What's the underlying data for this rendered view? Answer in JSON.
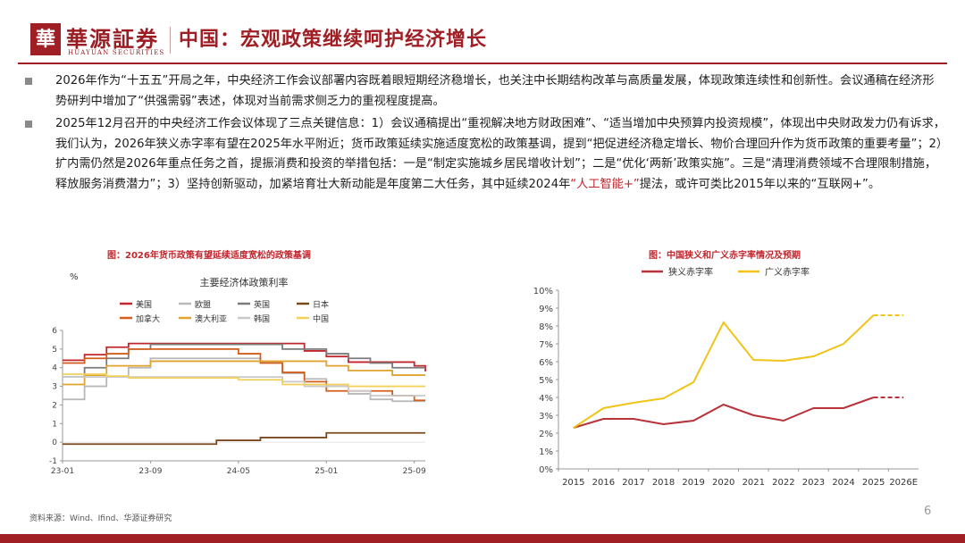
{
  "brand": {
    "logo_char": "華",
    "name_cn": "華源証券",
    "name_en": "HUAYUAN SECURITIES",
    "color": "#a01f25"
  },
  "page_title": "中国：宏观政策继续呵护经济增长",
  "paragraph1": "2026年作为“十五五”开局之年，中央经济工作会议部署内容既着眼短期经济稳增长，也关注中长期结构改革与高质量发展，体现政策连续性和创新性。会议通稿在经济形势研判中增加了“供强需弱”表述，体现对当前需求侧乏力的重视程度提高。",
  "paragraph2": {
    "before": "2025年12月召开的中央经济工作会议体现了三点关键信息：1）会议通稿提出“重视解决地方财政困难”、“适当增加中央预算内投资规模”，体现出中央财政发力仍有诉求，我们认为，2026年狭义赤字率有望在2025年水平附近；货币政策延续实施适度宽松的政策基调，提到“把促进经济稳定增长、物价合理回升作为货币政策的重要考量”；2）扩内需仍然是2026年重点任务之首，提振消费和投资的举措包括：一是“制定实施城乡居民增收计划”；二是“优化‘两新’政策实施”。三是“清理消费领域不合理限制措施，释放服务消费潜力”；3）坚持创新驱动，加紧培育壮大新动能是年度第二大任务，其中延续2024年",
    "highlight": "“人工智能+”",
    "after": "提法，或许可类比2015年以来的“互联网+”。"
  },
  "chart_left_caption": "图：2026年货币政策有望延续适度宽松的政策基调",
  "chart_right_caption": "图：中国狭义和广义赤字率情况及预期",
  "source": "资料来源：Wind、Ifind、华源证券研究",
  "page_number": "6",
  "chart_data": [
    {
      "type": "line",
      "title": "主要经济体政策利率",
      "ylabel": "%",
      "ylim": [
        -1,
        6
      ],
      "yticks": [
        "-1",
        "0",
        "1",
        "2",
        "3",
        "4",
        "5",
        "6"
      ],
      "xticks": [
        "23-01",
        "23-09",
        "24-05",
        "25-01",
        "25-09"
      ],
      "x": [
        0,
        2,
        4,
        6,
        8,
        10,
        12,
        14,
        16,
        18,
        20,
        22,
        24,
        26,
        28,
        30,
        32,
        33
      ],
      "series": [
        {
          "name": "美国",
          "color": "#c0262d",
          "values": [
            4.4,
            4.7,
            5.1,
            5.3,
            5.3,
            5.3,
            5.3,
            5.3,
            5.3,
            5.3,
            5.3,
            4.9,
            4.6,
            4.3,
            4.3,
            4.3,
            4.1,
            3.8
          ]
        },
        {
          "name": "欧盟",
          "color": "#b8b8b8",
          "values": [
            2.3,
            3.0,
            3.5,
            4.0,
            4.5,
            4.5,
            4.5,
            4.5,
            4.5,
            4.3,
            3.7,
            3.4,
            3.0,
            2.6,
            2.3,
            2.2,
            2.2,
            2.2
          ]
        },
        {
          "name": "英国",
          "color": "#7c7c7c",
          "values": [
            3.5,
            4.0,
            4.5,
            5.0,
            5.25,
            5.25,
            5.25,
            5.25,
            5.25,
            5.25,
            5.0,
            5.0,
            4.75,
            4.5,
            4.25,
            4.0,
            4.0,
            4.0
          ]
        },
        {
          "name": "日本",
          "color": "#7a4a1e",
          "values": [
            -0.1,
            -0.1,
            -0.1,
            -0.1,
            -0.1,
            -0.1,
            -0.1,
            0.1,
            0.1,
            0.25,
            0.25,
            0.25,
            0.5,
            0.5,
            0.5,
            0.5,
            0.5,
            0.5
          ]
        },
        {
          "name": "加拿大",
          "color": "#d45f1c",
          "values": [
            4.25,
            4.5,
            4.75,
            5.0,
            5.0,
            5.0,
            5.0,
            5.0,
            4.75,
            4.25,
            3.75,
            3.25,
            2.75,
            2.75,
            2.75,
            2.5,
            2.25,
            2.25
          ]
        },
        {
          "name": "澳大利亚",
          "color": "#e0a32e",
          "values": [
            3.1,
            3.6,
            4.1,
            4.1,
            4.35,
            4.35,
            4.35,
            4.35,
            4.35,
            4.35,
            4.35,
            4.35,
            4.1,
            3.85,
            3.85,
            3.6,
            3.6,
            3.6
          ]
        },
        {
          "name": "韩国",
          "color": "#c9c9c9",
          "values": [
            3.5,
            3.5,
            3.5,
            3.5,
            3.5,
            3.5,
            3.5,
            3.5,
            3.5,
            3.5,
            3.25,
            3.0,
            3.0,
            2.75,
            2.5,
            2.5,
            2.5,
            2.5
          ]
        },
        {
          "name": "中国",
          "color": "#f2d15b",
          "values": [
            3.65,
            3.65,
            3.55,
            3.45,
            3.45,
            3.45,
            3.45,
            3.45,
            3.35,
            3.35,
            3.1,
            3.1,
            3.1,
            3.0,
            3.0,
            3.0,
            3.0,
            3.0
          ]
        }
      ]
    },
    {
      "type": "line",
      "title": "",
      "ylim": [
        0,
        10
      ],
      "yticks": [
        "0%",
        "1%",
        "2%",
        "3%",
        "4%",
        "5%",
        "6%",
        "7%",
        "8%",
        "9%",
        "10%"
      ],
      "categories": [
        "2015",
        "2016",
        "2017",
        "2018",
        "2019",
        "2020",
        "2021",
        "2022",
        "2023",
        "2024",
        "2025",
        "2026E"
      ],
      "series": [
        {
          "name": "狭义赤字率",
          "color": "#b8323a",
          "values": [
            2.3,
            2.8,
            2.8,
            2.5,
            2.7,
            3.6,
            3.0,
            2.7,
            3.4,
            3.4,
            4.0,
            4.0
          ],
          "forecast_from_index": 10
        },
        {
          "name": "广义赤字率",
          "color": "#f0c419",
          "values": [
            2.3,
            3.4,
            3.7,
            3.95,
            4.85,
            8.2,
            6.1,
            6.05,
            6.3,
            7.0,
            8.6,
            8.6
          ],
          "forecast_from_index": 10
        }
      ]
    }
  ]
}
